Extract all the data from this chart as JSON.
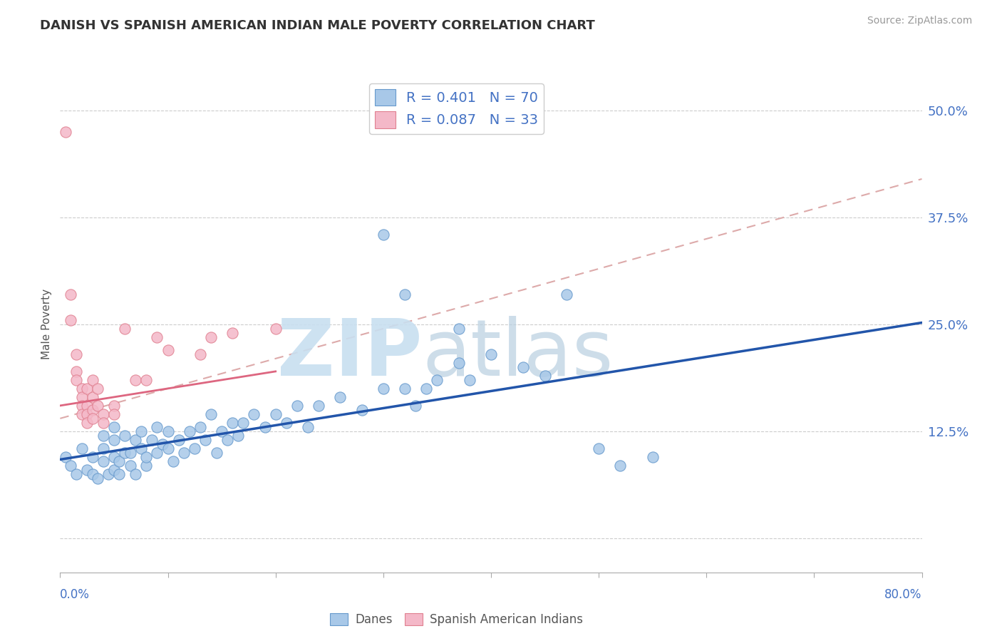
{
  "title": "DANISH VS SPANISH AMERICAN INDIAN MALE POVERTY CORRELATION CHART",
  "source": "Source: ZipAtlas.com",
  "ylabel": "Male Poverty",
  "x_lim": [
    0.0,
    0.8
  ],
  "y_lim": [
    -0.04,
    0.54
  ],
  "y_ticks": [
    0.0,
    0.125,
    0.25,
    0.375,
    0.5
  ],
  "y_tick_labels": [
    "",
    "12.5%",
    "25.0%",
    "37.5%",
    "50.0%"
  ],
  "danes_R": 0.401,
  "danes_N": 70,
  "spanish_R": 0.087,
  "spanish_N": 33,
  "danes_color": "#a8c8e8",
  "danes_edge_color": "#6699cc",
  "spanish_color": "#f4b8c8",
  "spanish_edge_color": "#e08090",
  "danes_line_color": "#2255aa",
  "spanish_line_solid_color": "#dd6680",
  "spanish_line_dash_color": "#ddaaaa",
  "background_color": "#ffffff",
  "grid_color": "#cccccc",
  "tick_color": "#4472c4",
  "legend_text_color": "#4472c4",
  "danes_scatter": [
    [
      0.005,
      0.095
    ],
    [
      0.01,
      0.085
    ],
    [
      0.015,
      0.075
    ],
    [
      0.02,
      0.105
    ],
    [
      0.025,
      0.08
    ],
    [
      0.03,
      0.075
    ],
    [
      0.03,
      0.095
    ],
    [
      0.035,
      0.07
    ],
    [
      0.04,
      0.09
    ],
    [
      0.04,
      0.105
    ],
    [
      0.04,
      0.12
    ],
    [
      0.045,
      0.075
    ],
    [
      0.05,
      0.08
    ],
    [
      0.05,
      0.095
    ],
    [
      0.05,
      0.115
    ],
    [
      0.05,
      0.13
    ],
    [
      0.055,
      0.075
    ],
    [
      0.055,
      0.09
    ],
    [
      0.06,
      0.1
    ],
    [
      0.06,
      0.12
    ],
    [
      0.065,
      0.085
    ],
    [
      0.065,
      0.1
    ],
    [
      0.07,
      0.115
    ],
    [
      0.07,
      0.075
    ],
    [
      0.075,
      0.105
    ],
    [
      0.075,
      0.125
    ],
    [
      0.08,
      0.085
    ],
    [
      0.08,
      0.095
    ],
    [
      0.085,
      0.115
    ],
    [
      0.09,
      0.13
    ],
    [
      0.09,
      0.1
    ],
    [
      0.095,
      0.11
    ],
    [
      0.1,
      0.105
    ],
    [
      0.1,
      0.125
    ],
    [
      0.105,
      0.09
    ],
    [
      0.11,
      0.115
    ],
    [
      0.115,
      0.1
    ],
    [
      0.12,
      0.125
    ],
    [
      0.125,
      0.105
    ],
    [
      0.13,
      0.13
    ],
    [
      0.135,
      0.115
    ],
    [
      0.14,
      0.145
    ],
    [
      0.145,
      0.1
    ],
    [
      0.15,
      0.125
    ],
    [
      0.155,
      0.115
    ],
    [
      0.16,
      0.135
    ],
    [
      0.165,
      0.12
    ],
    [
      0.17,
      0.135
    ],
    [
      0.18,
      0.145
    ],
    [
      0.19,
      0.13
    ],
    [
      0.2,
      0.145
    ],
    [
      0.21,
      0.135
    ],
    [
      0.22,
      0.155
    ],
    [
      0.23,
      0.13
    ],
    [
      0.24,
      0.155
    ],
    [
      0.26,
      0.165
    ],
    [
      0.28,
      0.15
    ],
    [
      0.3,
      0.175
    ],
    [
      0.32,
      0.175
    ],
    [
      0.33,
      0.155
    ],
    [
      0.34,
      0.175
    ],
    [
      0.35,
      0.185
    ],
    [
      0.37,
      0.205
    ],
    [
      0.38,
      0.185
    ],
    [
      0.4,
      0.215
    ],
    [
      0.43,
      0.2
    ],
    [
      0.45,
      0.19
    ],
    [
      0.5,
      0.105
    ],
    [
      0.52,
      0.085
    ],
    [
      0.55,
      0.095
    ]
  ],
  "danes_outliers": [
    [
      0.3,
      0.355
    ],
    [
      0.32,
      0.285
    ],
    [
      0.37,
      0.245
    ],
    [
      0.47,
      0.285
    ]
  ],
  "spanish_scatter": [
    [
      0.005,
      0.475
    ],
    [
      0.01,
      0.285
    ],
    [
      0.01,
      0.255
    ],
    [
      0.015,
      0.215
    ],
    [
      0.015,
      0.195
    ],
    [
      0.015,
      0.185
    ],
    [
      0.02,
      0.175
    ],
    [
      0.02,
      0.165
    ],
    [
      0.02,
      0.155
    ],
    [
      0.02,
      0.145
    ],
    [
      0.025,
      0.175
    ],
    [
      0.025,
      0.155
    ],
    [
      0.025,
      0.145
    ],
    [
      0.025,
      0.135
    ],
    [
      0.03,
      0.185
    ],
    [
      0.03,
      0.165
    ],
    [
      0.03,
      0.15
    ],
    [
      0.03,
      0.14
    ],
    [
      0.035,
      0.175
    ],
    [
      0.035,
      0.155
    ],
    [
      0.04,
      0.145
    ],
    [
      0.04,
      0.135
    ],
    [
      0.05,
      0.155
    ],
    [
      0.05,
      0.145
    ],
    [
      0.06,
      0.245
    ],
    [
      0.07,
      0.185
    ],
    [
      0.08,
      0.185
    ],
    [
      0.09,
      0.235
    ],
    [
      0.1,
      0.22
    ],
    [
      0.13,
      0.215
    ],
    [
      0.14,
      0.235
    ],
    [
      0.16,
      0.24
    ],
    [
      0.2,
      0.245
    ]
  ],
  "danes_line": {
    "x0": 0.0,
    "y0": 0.092,
    "x1": 0.8,
    "y1": 0.252
  },
  "spanish_solid_line": {
    "x0": 0.0,
    "y0": 0.155,
    "x1": 0.2,
    "y1": 0.195
  },
  "spanish_dash_line": {
    "x0": 0.0,
    "y0": 0.14,
    "x1": 0.8,
    "y1": 0.42
  }
}
